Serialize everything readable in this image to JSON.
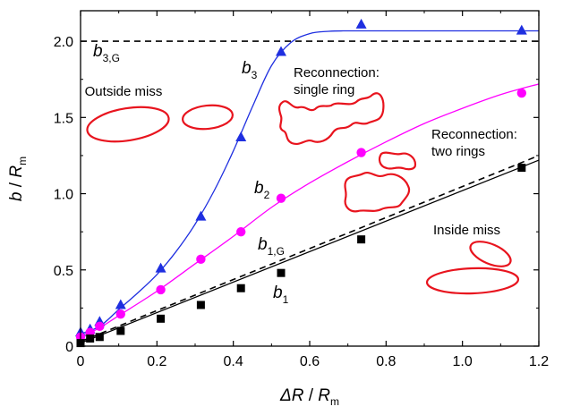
{
  "chart_data": {
    "type": "line",
    "xlabel": {
      "symbol": "ΔR",
      "sep": " / ",
      "var": "R",
      "sub": "m"
    },
    "ylabel": {
      "symbol": "b",
      "sep": " / ",
      "var": "R",
      "sub": "m"
    },
    "xlim": [
      0,
      1.2
    ],
    "ylim": [
      0,
      2.2
    ],
    "xticks": [
      0,
      0.2,
      0.4,
      0.6,
      0.8,
      1.0,
      1.2
    ],
    "xtick_labels": [
      "0",
      "0.2",
      "0.4",
      "0.6",
      "0.8",
      "1.0",
      "1.2"
    ],
    "yticks": [
      0,
      0.5,
      1.0,
      1.5,
      2.0
    ],
    "ytick_labels": [
      "0",
      "0.5",
      "1.0",
      "1.5",
      "2.0"
    ],
    "grid": false,
    "series": [
      {
        "label": {
          "var": "b",
          "sub": "3"
        },
        "color": "#1f2fe0",
        "marker": "triangle",
        "x": [
          0.0,
          0.025,
          0.05,
          0.105,
          0.21,
          0.315,
          0.42,
          0.525,
          0.735,
          1.155
        ],
        "y": [
          0.09,
          0.11,
          0.16,
          0.27,
          0.51,
          0.85,
          1.37,
          1.93,
          2.11,
          2.07
        ],
        "fit_x": [
          0.0,
          0.05,
          0.1,
          0.15,
          0.2,
          0.25,
          0.3,
          0.35,
          0.4,
          0.45,
          0.5,
          0.55,
          0.6,
          0.65,
          0.7,
          0.8,
          0.9,
          1.0,
          1.1,
          1.2
        ],
        "fit_y": [
          0.08,
          0.13,
          0.24,
          0.35,
          0.47,
          0.62,
          0.8,
          1.02,
          1.28,
          1.57,
          1.84,
          1.99,
          2.05,
          2.065,
          2.068,
          2.068,
          2.068,
          2.068,
          2.068,
          2.068
        ]
      },
      {
        "label": {
          "var": "b",
          "sub": "2"
        },
        "color": "#ff00ff",
        "marker": "circle",
        "x": [
          0.0,
          0.025,
          0.05,
          0.105,
          0.21,
          0.315,
          0.42,
          0.525,
          0.735,
          1.155
        ],
        "y": [
          0.06,
          0.09,
          0.13,
          0.21,
          0.37,
          0.57,
          0.75,
          0.97,
          1.27,
          1.66
        ],
        "fit_x": [
          0.0,
          0.05,
          0.1,
          0.2,
          0.3,
          0.4,
          0.5,
          0.6,
          0.7,
          0.8,
          0.9,
          1.0,
          1.1,
          1.2
        ],
        "fit_y": [
          0.06,
          0.12,
          0.2,
          0.36,
          0.54,
          0.72,
          0.91,
          1.07,
          1.21,
          1.34,
          1.46,
          1.56,
          1.65,
          1.72
        ]
      },
      {
        "label": {
          "var": "b",
          "sub": "1"
        },
        "color": "#000000",
        "marker": "square",
        "x": [
          0.0,
          0.025,
          0.05,
          0.105,
          0.21,
          0.315,
          0.42,
          0.525,
          0.735,
          1.155
        ],
        "y": [
          0.02,
          0.05,
          0.06,
          0.1,
          0.18,
          0.27,
          0.38,
          0.48,
          0.7,
          1.17
        ],
        "fit_x": [
          0.0,
          1.2
        ],
        "fit_y": [
          0.02,
          1.22
        ]
      }
    ],
    "reference_lines": [
      {
        "label": {
          "var": "b",
          "sub": "1,G"
        },
        "style": "dashed",
        "color": "#000000",
        "x": [
          0.0,
          1.2
        ],
        "y": [
          0.03,
          1.25
        ]
      },
      {
        "label": {
          "var": "b",
          "sub": "3,G"
        },
        "style": "dashed",
        "color": "#000000",
        "x": [
          0.0,
          1.2
        ],
        "y": [
          2.0,
          2.0
        ]
      }
    ],
    "annotations": [
      {
        "key": "outside",
        "text": [
          "Outside miss"
        ]
      },
      {
        "key": "single",
        "text": [
          "Reconnection:",
          "single ring"
        ]
      },
      {
        "key": "two",
        "text": [
          "Reconnection:",
          "two rings"
        ]
      },
      {
        "key": "inside",
        "text": [
          "Inside miss"
        ]
      }
    ],
    "ring_color": "#e8141e"
  }
}
